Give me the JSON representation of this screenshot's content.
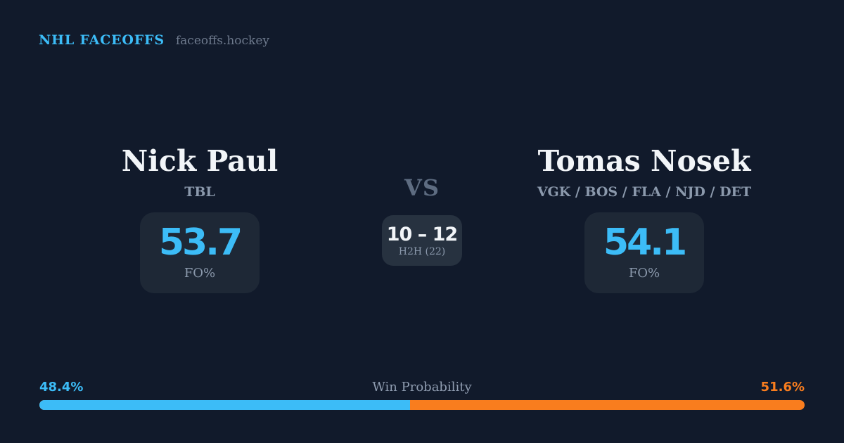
{
  "theme": {
    "background": "#111a2b",
    "card": "#1e2836",
    "h2h_card": "#273240",
    "accent_blue": "#3cbcf7",
    "accent_orange": "#f97d1e"
  },
  "header": {
    "brand": "NHL FACEOFFS",
    "site": "faceoffs.hockey"
  },
  "matchup": {
    "vs_label": "VS",
    "h2h": {
      "score": "10 – 12",
      "label": "H2H (22)"
    },
    "left": {
      "name": "Nick Paul",
      "teams": "TBL",
      "stat_value": "53.7",
      "stat_label": "FO%"
    },
    "right": {
      "name": "Tomas Nosek",
      "teams": "VGK / BOS / FLA / NJD / DET",
      "stat_value": "54.1",
      "stat_label": "FO%"
    }
  },
  "win_probability": {
    "title": "Win Probability",
    "left_label": "48.4%",
    "right_label": "51.6%",
    "left_value": 48.4,
    "right_value": 51.6
  }
}
